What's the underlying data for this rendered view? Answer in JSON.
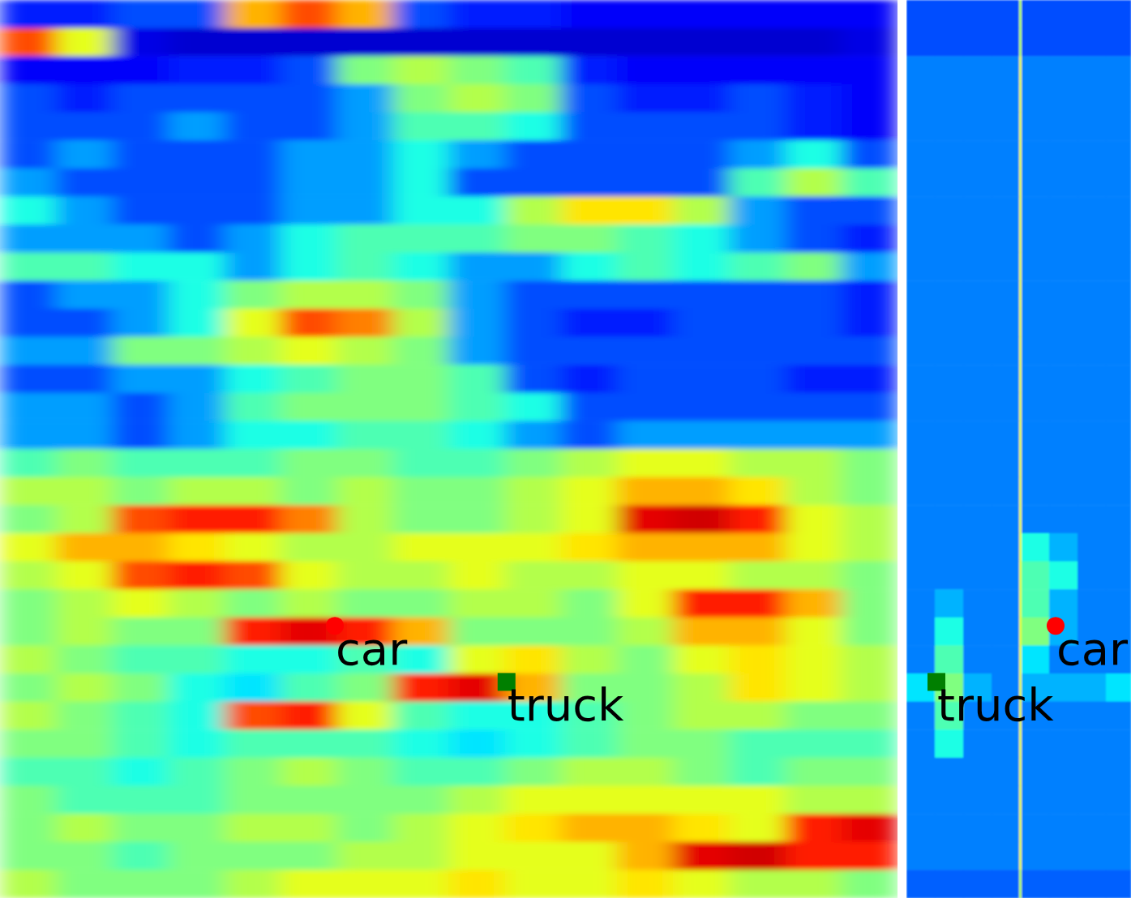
{
  "chart_data": [
    {
      "type": "heatmap",
      "tick_labels": false,
      "xlim": [
        0,
        16
      ],
      "ylim": [
        0,
        32
      ],
      "clim": [
        0,
        1
      ],
      "color": "jet",
      "cells": [
        [
          0.15,
          0.15,
          0.2,
          0.2,
          0.7,
          0.8,
          0.7,
          0.2,
          0.15,
          0.15,
          0.12,
          0.12,
          0.12,
          0.12,
          0.12,
          0.12
        ],
        [
          0.8,
          0.6,
          0.1,
          0.08,
          0.08,
          0.08,
          0.08,
          0.08,
          0.08,
          0.08,
          0.08,
          0.08,
          0.08,
          0.08,
          0.08,
          0.1
        ],
        [
          0.12,
          0.12,
          0.12,
          0.15,
          0.15,
          0.2,
          0.5,
          0.55,
          0.5,
          0.45,
          0.15,
          0.12,
          0.12,
          0.12,
          0.12,
          0.12
        ],
        [
          0.2,
          0.15,
          0.2,
          0.2,
          0.2,
          0.2,
          0.28,
          0.5,
          0.55,
          0.5,
          0.2,
          0.15,
          0.15,
          0.2,
          0.15,
          0.12
        ],
        [
          0.2,
          0.2,
          0.2,
          0.28,
          0.2,
          0.2,
          0.28,
          0.45,
          0.45,
          0.4,
          0.2,
          0.2,
          0.2,
          0.2,
          0.15,
          0.12
        ],
        [
          0.2,
          0.28,
          0.2,
          0.2,
          0.2,
          0.28,
          0.28,
          0.4,
          0.28,
          0.2,
          0.2,
          0.2,
          0.2,
          0.28,
          0.4,
          0.2
        ],
        [
          0.28,
          0.2,
          0.2,
          0.2,
          0.2,
          0.28,
          0.28,
          0.4,
          0.2,
          0.2,
          0.2,
          0.2,
          0.2,
          0.45,
          0.55,
          0.45
        ],
        [
          0.4,
          0.28,
          0.2,
          0.2,
          0.2,
          0.28,
          0.28,
          0.4,
          0.4,
          0.55,
          0.65,
          0.65,
          0.55,
          0.28,
          0.2,
          0.2
        ],
        [
          0.28,
          0.28,
          0.28,
          0.2,
          0.28,
          0.4,
          0.45,
          0.45,
          0.45,
          0.5,
          0.5,
          0.45,
          0.4,
          0.28,
          0.2,
          0.15
        ],
        [
          0.45,
          0.45,
          0.4,
          0.4,
          0.28,
          0.4,
          0.45,
          0.4,
          0.28,
          0.28,
          0.4,
          0.45,
          0.4,
          0.45,
          0.5,
          0.28
        ],
        [
          0.2,
          0.28,
          0.28,
          0.4,
          0.5,
          0.55,
          0.55,
          0.5,
          0.28,
          0.2,
          0.2,
          0.2,
          0.2,
          0.2,
          0.2,
          0.15
        ],
        [
          0.2,
          0.2,
          0.28,
          0.4,
          0.6,
          0.8,
          0.75,
          0.55,
          0.28,
          0.2,
          0.15,
          0.15,
          0.2,
          0.2,
          0.2,
          0.15
        ],
        [
          0.28,
          0.28,
          0.5,
          0.5,
          0.55,
          0.6,
          0.55,
          0.5,
          0.28,
          0.2,
          0.2,
          0.2,
          0.2,
          0.2,
          0.2,
          0.2
        ],
        [
          0.2,
          0.2,
          0.28,
          0.28,
          0.4,
          0.45,
          0.5,
          0.5,
          0.45,
          0.2,
          0.15,
          0.2,
          0.2,
          0.2,
          0.15,
          0.15
        ],
        [
          0.28,
          0.28,
          0.2,
          0.28,
          0.45,
          0.5,
          0.5,
          0.5,
          0.45,
          0.4,
          0.2,
          0.2,
          0.2,
          0.2,
          0.2,
          0.2
        ],
        [
          0.28,
          0.28,
          0.2,
          0.28,
          0.4,
          0.4,
          0.45,
          0.45,
          0.4,
          0.28,
          0.2,
          0.28,
          0.28,
          0.28,
          0.28,
          0.28
        ],
        [
          0.45,
          0.5,
          0.45,
          0.45,
          0.45,
          0.5,
          0.5,
          0.45,
          0.45,
          0.5,
          0.55,
          0.6,
          0.6,
          0.55,
          0.55,
          0.5
        ],
        [
          0.55,
          0.55,
          0.5,
          0.55,
          0.55,
          0.5,
          0.55,
          0.5,
          0.5,
          0.55,
          0.6,
          0.7,
          0.7,
          0.65,
          0.55,
          0.5
        ],
        [
          0.5,
          0.55,
          0.8,
          0.85,
          0.85,
          0.75,
          0.55,
          0.5,
          0.5,
          0.55,
          0.6,
          0.9,
          0.92,
          0.85,
          0.6,
          0.55
        ],
        [
          0.6,
          0.7,
          0.7,
          0.65,
          0.6,
          0.55,
          0.55,
          0.6,
          0.6,
          0.6,
          0.65,
          0.7,
          0.7,
          0.7,
          0.6,
          0.55
        ],
        [
          0.55,
          0.6,
          0.8,
          0.85,
          0.8,
          0.6,
          0.55,
          0.55,
          0.6,
          0.55,
          0.55,
          0.6,
          0.6,
          0.55,
          0.55,
          0.5
        ],
        [
          0.5,
          0.55,
          0.6,
          0.55,
          0.5,
          0.55,
          0.5,
          0.5,
          0.55,
          0.55,
          0.5,
          0.6,
          0.85,
          0.85,
          0.7,
          0.5
        ],
        [
          0.5,
          0.55,
          0.5,
          0.5,
          0.85,
          0.9,
          0.85,
          0.7,
          0.5,
          0.5,
          0.5,
          0.55,
          0.7,
          0.7,
          0.6,
          0.5
        ],
        [
          0.55,
          0.5,
          0.45,
          0.45,
          0.4,
          0.4,
          0.45,
          0.4,
          0.6,
          0.65,
          0.55,
          0.5,
          0.6,
          0.65,
          0.6,
          0.55
        ],
        [
          0.5,
          0.55,
          0.5,
          0.4,
          0.35,
          0.45,
          0.5,
          0.85,
          0.9,
          0.7,
          0.5,
          0.5,
          0.55,
          0.65,
          0.6,
          0.55
        ],
        [
          0.55,
          0.5,
          0.45,
          0.4,
          0.8,
          0.85,
          0.6,
          0.45,
          0.4,
          0.4,
          0.45,
          0.5,
          0.55,
          0.55,
          0.5,
          0.5
        ],
        [
          0.5,
          0.5,
          0.45,
          0.4,
          0.45,
          0.45,
          0.45,
          0.4,
          0.35,
          0.4,
          0.45,
          0.5,
          0.5,
          0.45,
          0.45,
          0.45
        ],
        [
          0.45,
          0.45,
          0.4,
          0.45,
          0.5,
          0.55,
          0.5,
          0.45,
          0.45,
          0.5,
          0.55,
          0.55,
          0.5,
          0.45,
          0.5,
          0.5
        ],
        [
          0.5,
          0.45,
          0.45,
          0.45,
          0.5,
          0.5,
          0.5,
          0.5,
          0.55,
          0.6,
          0.6,
          0.6,
          0.6,
          0.6,
          0.55,
          0.55
        ],
        [
          0.5,
          0.55,
          0.5,
          0.5,
          0.55,
          0.55,
          0.5,
          0.55,
          0.6,
          0.65,
          0.7,
          0.7,
          0.65,
          0.6,
          0.85,
          0.9
        ],
        [
          0.5,
          0.5,
          0.45,
          0.5,
          0.5,
          0.5,
          0.55,
          0.55,
          0.6,
          0.6,
          0.6,
          0.7,
          0.9,
          0.92,
          0.85,
          0.85
        ],
        [
          0.55,
          0.5,
          0.5,
          0.5,
          0.55,
          0.6,
          0.6,
          0.6,
          0.65,
          0.6,
          0.6,
          0.65,
          0.6,
          0.55,
          0.55,
          0.5
        ]
      ],
      "annotations": [
        {
          "label": "car",
          "x": 5.97,
          "y": 22.3,
          "marker": "circle",
          "color": "red"
        },
        {
          "label": "truck",
          "x": 9.03,
          "y": 24.3,
          "marker": "square",
          "color": "green"
        }
      ]
    },
    {
      "type": "heatmap",
      "tick_labels": false,
      "xlim": [
        0,
        277
      ],
      "ylim": [
        0,
        32
      ],
      "clim": [
        0,
        1
      ],
      "color": "jet",
      "x_edges": [
        0,
        35,
        70,
        105,
        139,
        142,
        176,
        211,
        246,
        277
      ],
      "cells": [
        [
          0.2,
          0.2,
          0.2,
          0.2,
          0.55,
          0.2,
          0.2,
          0.2,
          0.2
        ],
        [
          0.2,
          0.2,
          0.2,
          0.2,
          0.55,
          0.2,
          0.2,
          0.2,
          0.2
        ],
        [
          0.25,
          0.25,
          0.25,
          0.25,
          0.6,
          0.25,
          0.25,
          0.25,
          0.25
        ],
        [
          0.25,
          0.25,
          0.25,
          0.25,
          0.6,
          0.25,
          0.25,
          0.25,
          0.25
        ],
        [
          0.25,
          0.25,
          0.25,
          0.25,
          0.6,
          0.25,
          0.25,
          0.25,
          0.25
        ],
        [
          0.25,
          0.25,
          0.25,
          0.25,
          0.6,
          0.25,
          0.25,
          0.25,
          0.25
        ],
        [
          0.25,
          0.25,
          0.25,
          0.25,
          0.6,
          0.25,
          0.25,
          0.25,
          0.25
        ],
        [
          0.25,
          0.25,
          0.25,
          0.25,
          0.6,
          0.25,
          0.25,
          0.25,
          0.25
        ],
        [
          0.25,
          0.25,
          0.25,
          0.25,
          0.6,
          0.25,
          0.25,
          0.25,
          0.25
        ],
        [
          0.25,
          0.25,
          0.25,
          0.25,
          0.6,
          0.25,
          0.25,
          0.25,
          0.25
        ],
        [
          0.25,
          0.25,
          0.25,
          0.25,
          0.6,
          0.25,
          0.25,
          0.25,
          0.25
        ],
        [
          0.25,
          0.25,
          0.25,
          0.25,
          0.6,
          0.25,
          0.25,
          0.25,
          0.25
        ],
        [
          0.25,
          0.25,
          0.25,
          0.25,
          0.6,
          0.25,
          0.25,
          0.25,
          0.25
        ],
        [
          0.25,
          0.25,
          0.25,
          0.25,
          0.6,
          0.25,
          0.25,
          0.25,
          0.25
        ],
        [
          0.25,
          0.25,
          0.25,
          0.25,
          0.6,
          0.25,
          0.25,
          0.25,
          0.25
        ],
        [
          0.25,
          0.25,
          0.25,
          0.25,
          0.6,
          0.25,
          0.25,
          0.25,
          0.25
        ],
        [
          0.25,
          0.25,
          0.25,
          0.25,
          0.6,
          0.25,
          0.25,
          0.25,
          0.25
        ],
        [
          0.25,
          0.25,
          0.25,
          0.25,
          0.6,
          0.25,
          0.25,
          0.25,
          0.25
        ],
        [
          0.25,
          0.25,
          0.25,
          0.25,
          0.6,
          0.25,
          0.25,
          0.25,
          0.25
        ],
        [
          0.25,
          0.25,
          0.25,
          0.25,
          0.6,
          0.4,
          0.3,
          0.25,
          0.25
        ],
        [
          0.25,
          0.25,
          0.25,
          0.25,
          0.6,
          0.45,
          0.4,
          0.25,
          0.25
        ],
        [
          0.25,
          0.3,
          0.25,
          0.25,
          0.6,
          0.45,
          0.3,
          0.25,
          0.25
        ],
        [
          0.25,
          0.4,
          0.25,
          0.25,
          0.6,
          0.5,
          0.3,
          0.25,
          0.25
        ],
        [
          0.25,
          0.45,
          0.25,
          0.25,
          0.6,
          0.35,
          0.25,
          0.25,
          0.25
        ],
        [
          0.35,
          0.5,
          0.3,
          0.25,
          0.6,
          0.3,
          0.3,
          0.3,
          0.35
        ],
        [
          0.25,
          0.45,
          0.25,
          0.25,
          0.6,
          0.25,
          0.25,
          0.25,
          0.25
        ],
        [
          0.25,
          0.4,
          0.25,
          0.25,
          0.6,
          0.25,
          0.25,
          0.25,
          0.25
        ],
        [
          0.25,
          0.25,
          0.25,
          0.25,
          0.6,
          0.25,
          0.25,
          0.25,
          0.25
        ],
        [
          0.25,
          0.25,
          0.25,
          0.25,
          0.6,
          0.25,
          0.25,
          0.25,
          0.25
        ],
        [
          0.25,
          0.25,
          0.25,
          0.25,
          0.6,
          0.25,
          0.25,
          0.25,
          0.25
        ],
        [
          0.25,
          0.25,
          0.25,
          0.25,
          0.6,
          0.25,
          0.25,
          0.25,
          0.25
        ],
        [
          0.22,
          0.22,
          0.22,
          0.22,
          0.55,
          0.22,
          0.22,
          0.22,
          0.22
        ]
      ],
      "annotations": [
        {
          "label": "car",
          "x": 184,
          "y": 22.3,
          "marker": "circle",
          "color": "red"
        },
        {
          "label": "truck",
          "x": 37,
          "y": 24.3,
          "marker": "square",
          "color": "green"
        }
      ]
    }
  ]
}
